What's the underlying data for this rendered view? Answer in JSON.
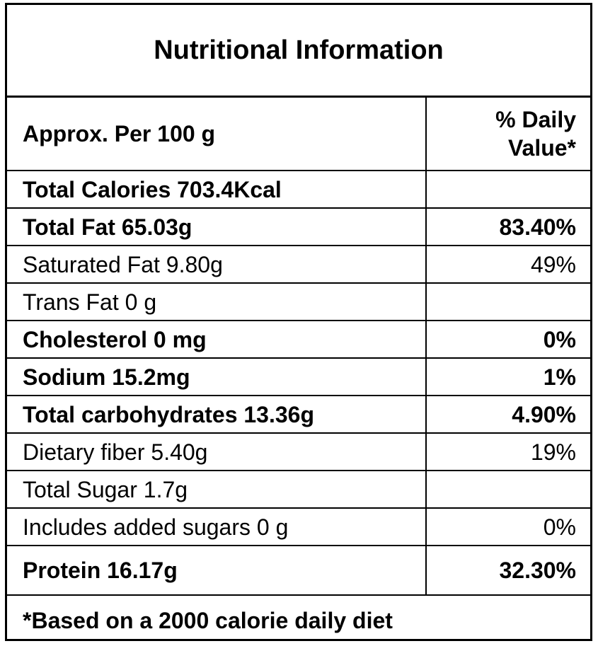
{
  "title": "Nutritional Information",
  "header": {
    "serving": "Approx. Per 100 g",
    "daily_value": "% Daily Value*"
  },
  "rows": [
    {
      "label": "Total Calories 703.4Kcal",
      "value": "",
      "bold": true
    },
    {
      "label": "Total Fat 65.03g",
      "value": "83.40%",
      "bold": true
    },
    {
      "label": "Saturated Fat  9.80g",
      "value": "49%",
      "bold": false
    },
    {
      "label": "Trans Fat 0 g",
      "value": "",
      "bold": false
    },
    {
      "label": "Cholesterol 0 mg",
      "value": "0%",
      "bold": true
    },
    {
      "label": "Sodium 15.2mg",
      "value": "1%",
      "bold": true
    },
    {
      "label": "Total carbohydrates  13.36g",
      "value": "4.90%",
      "bold": true
    },
    {
      "label": "Dietary fiber  5.40g",
      "value": "19%",
      "bold": false
    },
    {
      "label": "Total Sugar 1.7g",
      "value": "",
      "bold": false
    },
    {
      "label": "Includes added sugars 0 g",
      "value": "0%",
      "bold": false
    },
    {
      "label": "Protein  16.17g",
      "value": "32.30%",
      "bold": true
    }
  ],
  "footnote": "*Based on a 2000 calorie daily diet"
}
